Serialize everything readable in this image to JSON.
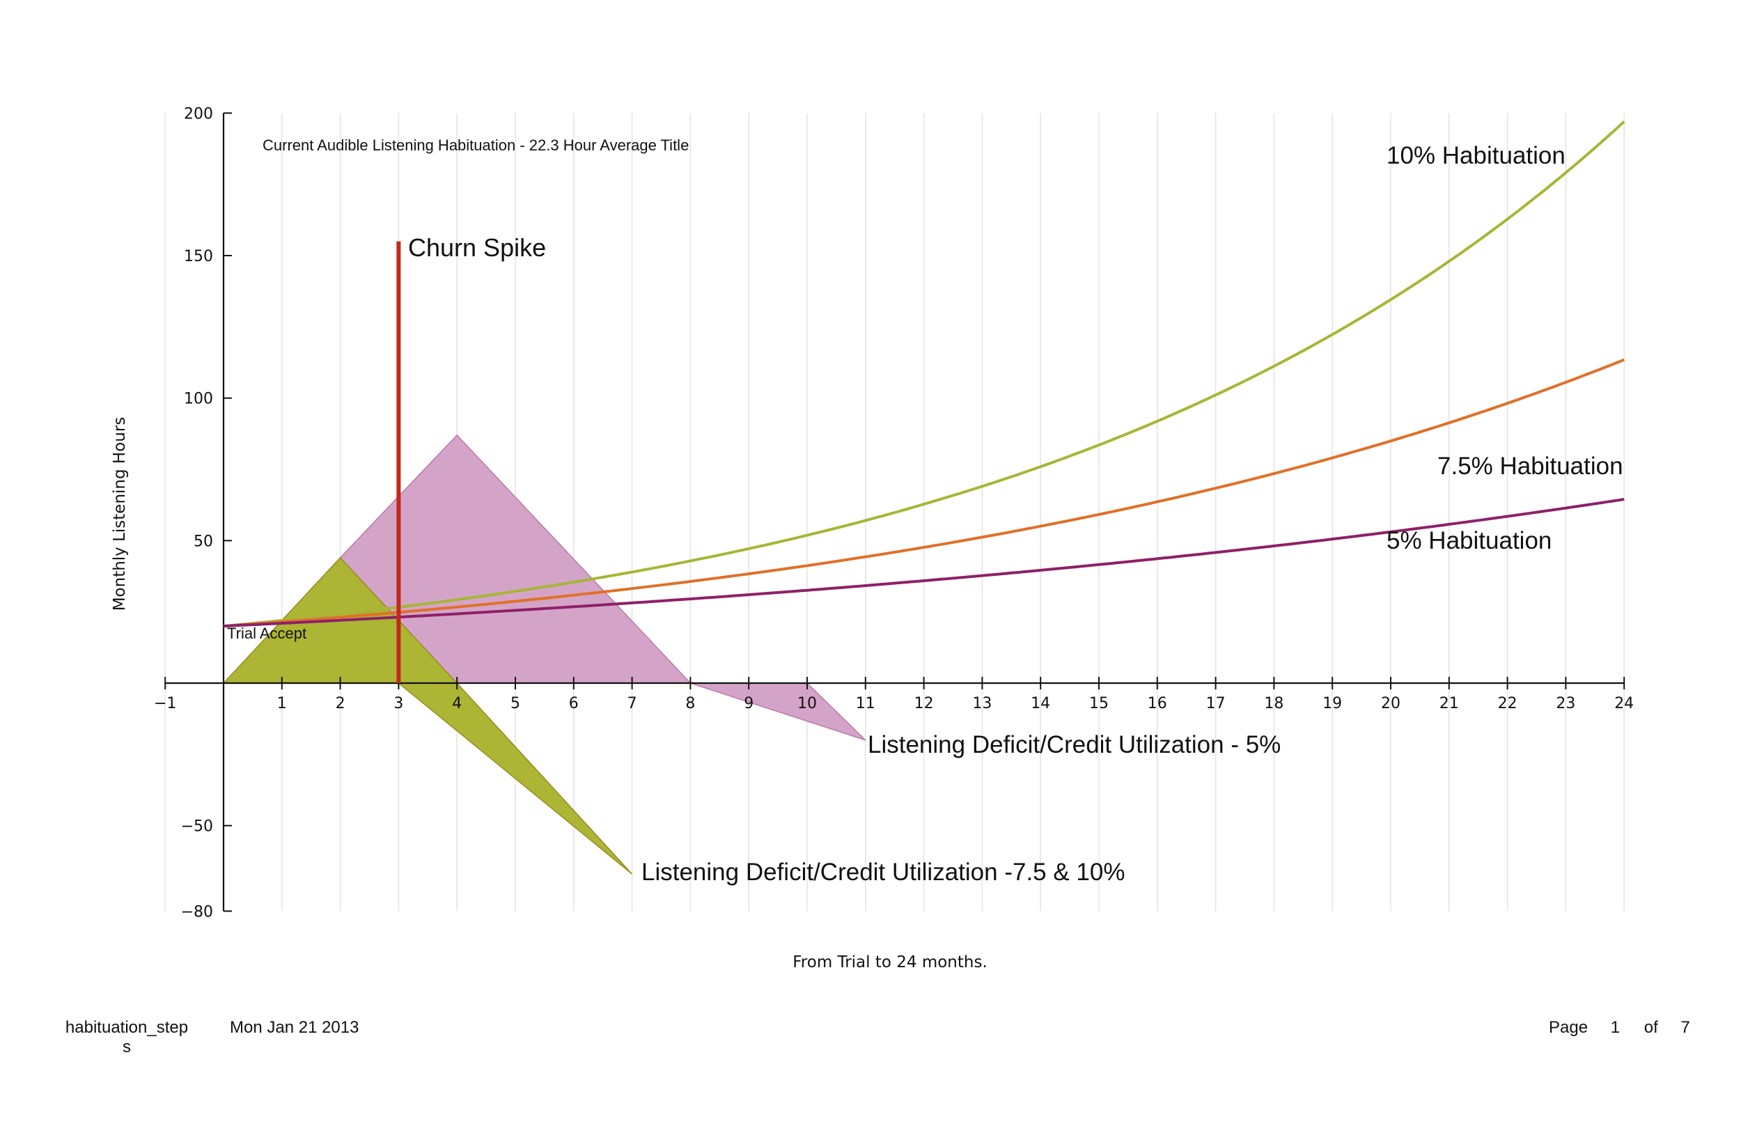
{
  "chart_data": {
    "type": "line",
    "title": "Current Audible Listening Habituation - 22.3 Hour Average Title",
    "xlabel": "From Trial to 24 months.",
    "ylabel": "Monthly Listening Hours",
    "xlim": [
      -1,
      24
    ],
    "ylim": [
      -80,
      200
    ],
    "x_ticks": [
      "-1",
      "1",
      "2",
      "3",
      "4",
      "5",
      "6",
      "7",
      "8",
      "9",
      "10",
      "11",
      "12",
      "13",
      "14",
      "15",
      "16",
      "17",
      "18",
      "19",
      "20",
      "21",
      "22",
      "23",
      "24"
    ],
    "y_ticks": [
      "200",
      "150",
      "100",
      "50",
      "-50",
      "-80"
    ],
    "grid": "vertical",
    "series": [
      {
        "name": "10% Habituation",
        "color": "#a8b535",
        "start": 20,
        "monthly_rate": 0.1,
        "x": [
          0,
          3,
          6,
          9,
          12,
          15,
          18,
          21,
          24
        ],
        "values": [
          20,
          26.6,
          35.4,
          47.2,
          62.8,
          83.5,
          111.2,
          148.0,
          197.0
        ]
      },
      {
        "name": "7.5% Habituation",
        "color": "#e07028",
        "start": 20,
        "monthly_rate": 0.075,
        "x": [
          0,
          3,
          6,
          9,
          12,
          15,
          18,
          21,
          24
        ],
        "values": [
          20,
          24.8,
          30.9,
          38.3,
          47.6,
          59.2,
          73.5,
          91.3,
          113.4
        ]
      },
      {
        "name": "5% Habituation",
        "color": "#8e2068",
        "start": 20,
        "monthly_rate": 0.05,
        "x": [
          0,
          3,
          6,
          9,
          12,
          15,
          18,
          21,
          24
        ],
        "values": [
          20,
          23.2,
          26.8,
          31.0,
          35.9,
          41.6,
          48.1,
          55.7,
          64.5
        ]
      }
    ],
    "areas": [
      {
        "name": "Listening Deficit/Credit Utilization - 5%",
        "color": "#d4a4c8",
        "points": [
          [
            2,
            44
          ],
          [
            4,
            87
          ],
          [
            8,
            0
          ],
          [
            10,
            0
          ],
          [
            11,
            -20
          ],
          [
            8,
            0
          ],
          [
            4,
            0
          ]
        ]
      },
      {
        "name": "Listening Deficit/Credit Utilization -7.5 & 10%",
        "color": "#acb534",
        "points": [
          [
            0,
            0
          ],
          [
            2,
            44
          ],
          [
            4,
            0
          ],
          [
            7,
            -67
          ],
          [
            3,
            0
          ]
        ]
      }
    ],
    "vertical_line": {
      "label": "Churn Spike",
      "x": 3,
      "y_from": 0,
      "y_to": 155,
      "color": "#c12a1a"
    },
    "annotations": [
      {
        "text": "Trial Accept",
        "x": 0,
        "y": 20
      },
      {
        "text": "10% Habituation"
      },
      {
        "text": "7.5% Habituation"
      },
      {
        "text": "5% Habituation"
      },
      {
        "text": "Listening Deficit/Credit Utilization - 5%"
      },
      {
        "text": "Listening Deficit/Credit Utilization -7.5 & 10%"
      }
    ]
  },
  "footer": {
    "filename_line1": "habituation_step",
    "filename_line2": "s",
    "date": "Mon Jan 21 2013",
    "page_label": "Page",
    "page_current": "1",
    "page_of": "of",
    "page_total": "7"
  }
}
